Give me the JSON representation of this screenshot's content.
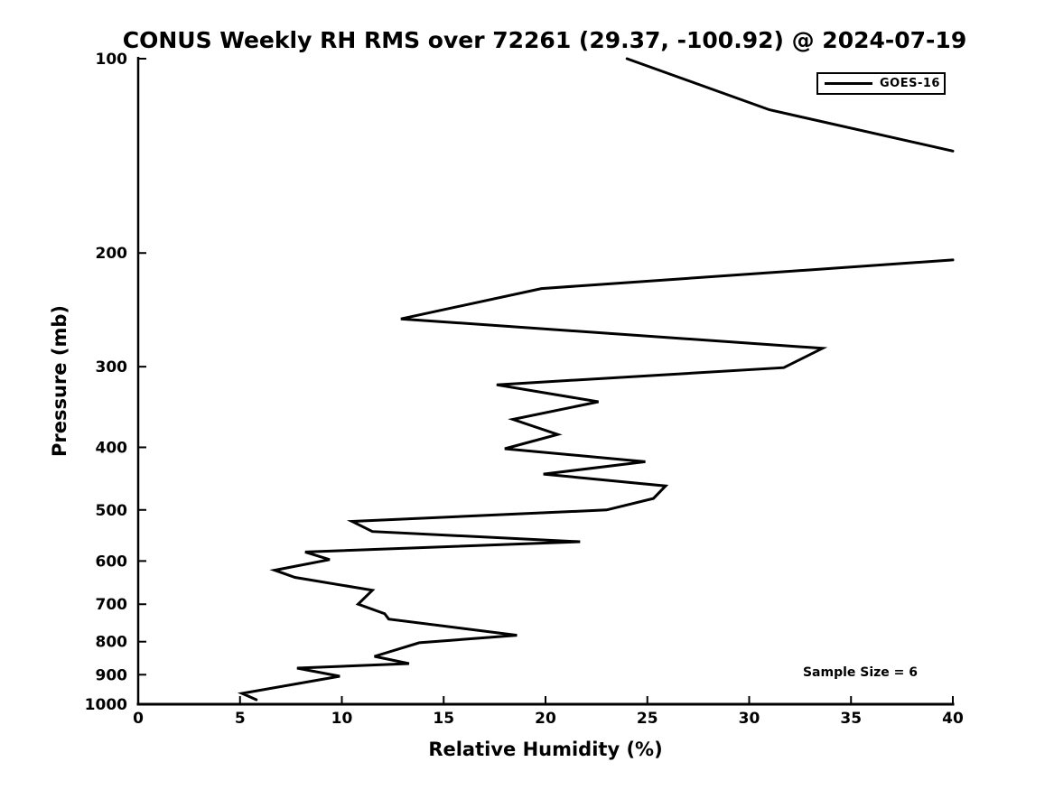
{
  "page": {
    "background": "#ffffff",
    "foreground": "#000000"
  },
  "chart_data": {
    "type": "line",
    "title": "CONUS Weekly RH RMS over 72261 (29.37, -100.92) @ 2024-07-19",
    "xlabel": "Relative Humidity (%)",
    "ylabel": "Pressure (mb)",
    "xlim": [
      0,
      40
    ],
    "ylim": [
      1000,
      100
    ],
    "yscale": "log",
    "y_inverted": true,
    "grid": false,
    "xticks": [
      0,
      5,
      10,
      15,
      20,
      25,
      30,
      35,
      40
    ],
    "yticks": [
      100,
      200,
      300,
      400,
      500,
      600,
      700,
      800,
      900,
      1000
    ],
    "legend": {
      "position": "upper-right",
      "entries": [
        {
          "label": "GOES-16",
          "color": "#000000"
        }
      ]
    },
    "annotation": {
      "text": "Sample Size = 6"
    },
    "series": [
      {
        "name": "GOES-16",
        "color": "#000000",
        "linewidth": 3,
        "clipped_at_xmax": true,
        "points_rh_p_segments": [
          [
            [
              24.0,
              100
            ],
            [
              31.0,
              120
            ],
            [
              40.0,
              139
            ]
          ],
          [
            [
              40.0,
              205
            ],
            [
              19.8,
              227
            ],
            [
              12.9,
              253
            ],
            [
              33.6,
              281
            ],
            [
              31.7,
              301
            ],
            [
              17.6,
              320
            ],
            [
              22.6,
              340
            ],
            [
              18.4,
              362
            ],
            [
              20.6,
              382
            ],
            [
              18.0,
              402
            ],
            [
              24.9,
              421
            ],
            [
              19.9,
              440
            ],
            [
              25.9,
              459
            ],
            [
              25.3,
              480
            ],
            [
              23.0,
              500
            ],
            [
              10.5,
              521
            ],
            [
              11.5,
              540
            ],
            [
              21.7,
              560
            ],
            [
              8.2,
              581
            ],
            [
              9.4,
              597
            ],
            [
              6.7,
              620
            ],
            [
              7.7,
              636
            ],
            [
              11.5,
              666
            ],
            [
              10.8,
              700
            ],
            [
              12.1,
              724
            ],
            [
              12.3,
              738
            ],
            [
              18.6,
              782
            ],
            [
              13.8,
              803
            ],
            [
              11.6,
              843
            ],
            [
              13.3,
              865
            ],
            [
              7.8,
              879
            ],
            [
              9.9,
              905
            ],
            [
              5.1,
              962
            ],
            [
              5.8,
              984
            ]
          ]
        ]
      }
    ]
  }
}
